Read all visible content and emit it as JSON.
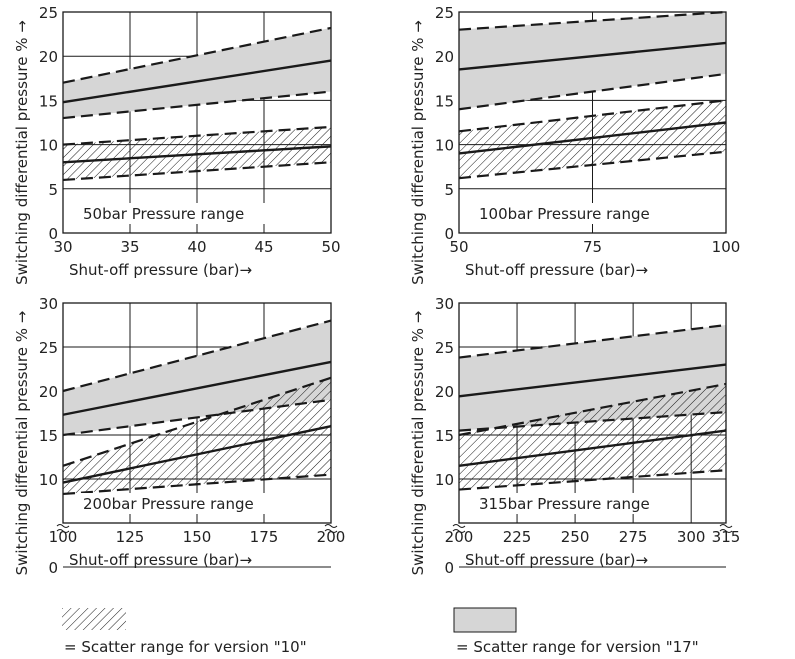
{
  "chart_data": [
    {
      "type": "area",
      "title": "",
      "range_label": "50bar Pressure range",
      "xlabel": "Shut-off pressure (bar)→",
      "ylabel": "Switching differential pressure % →",
      "xlim": [
        30,
        50
      ],
      "ylim": [
        0,
        25
      ],
      "xticks": [
        30,
        35,
        40,
        45,
        50
      ],
      "yticks": [
        0,
        5,
        10,
        15,
        20,
        25
      ],
      "grid": true,
      "y_break": false,
      "series": [
        {
          "name": "version \"17\"",
          "fill": "gray",
          "x": [
            30,
            50
          ],
          "upper": [
            17,
            23.2
          ],
          "mid": [
            14.8,
            19.5
          ],
          "lower": [
            13,
            16
          ]
        },
        {
          "name": "version \"10\"",
          "fill": "hatch",
          "x": [
            30,
            50
          ],
          "upper": [
            10,
            12
          ],
          "mid": [
            8,
            9.8
          ],
          "lower": [
            6,
            8
          ]
        }
      ]
    },
    {
      "type": "area",
      "title": "",
      "range_label": "100bar Pressure range",
      "xlabel": "Shut-off pressure (bar)→",
      "ylabel": "Switching differential pressure % →",
      "xlim": [
        50,
        100
      ],
      "ylim": [
        0,
        25
      ],
      "xticks": [
        50,
        75,
        100
      ],
      "yticks": [
        0,
        5,
        10,
        15,
        20,
        25
      ],
      "grid": true,
      "y_break": false,
      "series": [
        {
          "name": "version \"17\"",
          "fill": "gray",
          "x": [
            50,
            100
          ],
          "upper": [
            23,
            25
          ],
          "mid": [
            18.5,
            21.5
          ],
          "lower": [
            14,
            18
          ]
        },
        {
          "name": "version \"10\"",
          "fill": "hatch",
          "x": [
            50,
            100
          ],
          "upper": [
            11.5,
            15
          ],
          "mid": [
            9,
            12.5
          ],
          "lower": [
            6.2,
            9.2
          ]
        }
      ]
    },
    {
      "type": "area",
      "title": "",
      "range_label": "200bar Pressure range",
      "xlabel": "Shut-off pressure (bar)→",
      "ylabel": "Switching differential pressure % →",
      "xlim": [
        100,
        200
      ],
      "ylim": [
        0,
        30
      ],
      "xticks": [
        100,
        125,
        150,
        175,
        200
      ],
      "yticks": [
        0,
        10,
        15,
        20,
        25,
        30
      ],
      "grid": true,
      "y_break": true,
      "series": [
        {
          "name": "version \"17\"",
          "fill": "gray",
          "x": [
            100,
            200
          ],
          "upper": [
            20,
            28
          ],
          "mid": [
            17.3,
            23.3
          ],
          "lower": [
            15,
            19
          ]
        },
        {
          "name": "version \"10\"",
          "fill": "hatch",
          "x": [
            100,
            200
          ],
          "upper": [
            11.5,
            21.5
          ],
          "mid": [
            9.6,
            16
          ],
          "lower": [
            8.3,
            10.5
          ]
        }
      ]
    },
    {
      "type": "area",
      "title": "",
      "range_label": "315bar Pressure range",
      "xlabel": "Shut-off pressure (bar)→",
      "ylabel": "Switching differential pressure % →",
      "xlim": [
        200,
        315
      ],
      "ylim": [
        0,
        30
      ],
      "xticks": [
        200,
        225,
        250,
        275,
        300,
        315
      ],
      "yticks": [
        0,
        10,
        15,
        20,
        25,
        30
      ],
      "grid": true,
      "y_break": true,
      "series": [
        {
          "name": "version \"17\"",
          "fill": "gray",
          "x": [
            200,
            315
          ],
          "upper": [
            23.8,
            27.5
          ],
          "mid": [
            19.4,
            23
          ],
          "lower": [
            15.5,
            17.6
          ]
        },
        {
          "name": "version \"10\"",
          "fill": "hatch",
          "x": [
            200,
            315
          ],
          "upper": [
            15,
            20.8
          ],
          "mid": [
            11.5,
            15.5
          ],
          "lower": [
            8.8,
            11
          ]
        }
      ]
    }
  ],
  "legend": {
    "hatch_label": "= Scatter range for version \"10\"",
    "gray_label": "= Scatter range for version \"17\""
  },
  "colors": {
    "band_gray": "#d6d6d6",
    "line": "#1a1a1a",
    "grid": "#1a1a1a"
  }
}
